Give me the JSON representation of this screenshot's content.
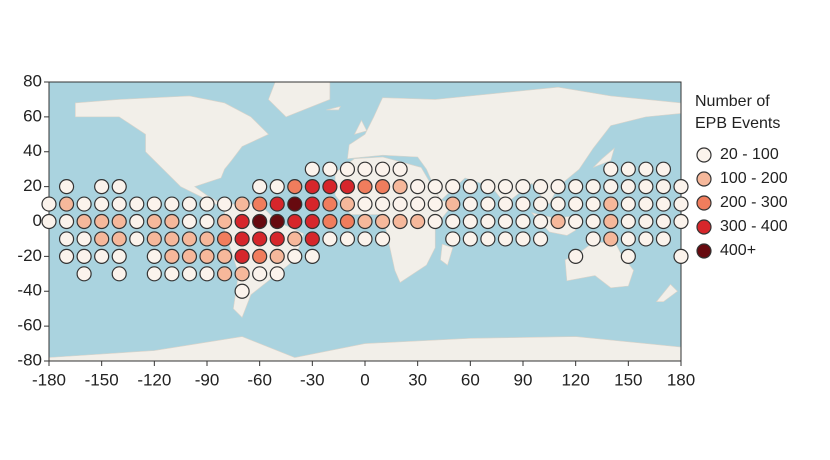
{
  "chart_data": {
    "type": "scatter-map",
    "legend_title": [
      "Number of",
      "EPB Events"
    ],
    "bins": [
      {
        "label": "20 - 100",
        "color": "#fbf3ec"
      },
      {
        "label": "100 - 200",
        "color": "#f6b89b"
      },
      {
        "label": "200 - 300",
        "color": "#f07d5d"
      },
      {
        "label": "300 - 400",
        "color": "#d6262b"
      },
      {
        "label": "400+",
        "color": "#670a0f"
      }
    ],
    "xlim": [
      -180,
      180
    ],
    "ylim": [
      -80,
      80
    ],
    "xticks": [
      -180,
      -150,
      -120,
      -90,
      -60,
      -30,
      0,
      30,
      60,
      90,
      120,
      150,
      180
    ],
    "yticks": [
      -80,
      -60,
      -40,
      -20,
      0,
      20,
      40,
      60,
      80
    ],
    "points": [
      [
        -30,
        30,
        0
      ],
      [
        -20,
        30,
        0
      ],
      [
        -10,
        30,
        0
      ],
      [
        0,
        30,
        0
      ],
      [
        10,
        30,
        0
      ],
      [
        20,
        30,
        0
      ],
      [
        140,
        30,
        0
      ],
      [
        150,
        30,
        0
      ],
      [
        160,
        30,
        0
      ],
      [
        170,
        30,
        0
      ],
      [
        -170,
        20,
        0
      ],
      [
        -150,
        20,
        0
      ],
      [
        -140,
        20,
        0
      ],
      [
        -60,
        20,
        0
      ],
      [
        -50,
        20,
        0
      ],
      [
        -40,
        20,
        2
      ],
      [
        -30,
        20,
        3
      ],
      [
        -20,
        20,
        3
      ],
      [
        -10,
        20,
        3
      ],
      [
        0,
        20,
        2
      ],
      [
        10,
        20,
        2
      ],
      [
        20,
        20,
        1
      ],
      [
        30,
        20,
        0
      ],
      [
        40,
        20,
        0
      ],
      [
        50,
        20,
        0
      ],
      [
        60,
        20,
        0
      ],
      [
        70,
        20,
        0
      ],
      [
        80,
        20,
        0
      ],
      [
        90,
        20,
        0
      ],
      [
        100,
        20,
        0
      ],
      [
        110,
        20,
        0
      ],
      [
        120,
        20,
        0
      ],
      [
        130,
        20,
        0
      ],
      [
        140,
        20,
        0
      ],
      [
        150,
        20,
        0
      ],
      [
        160,
        20,
        0
      ],
      [
        170,
        20,
        0
      ],
      [
        180,
        20,
        0
      ],
      [
        -180,
        10,
        0
      ],
      [
        -170,
        10,
        1
      ],
      [
        -160,
        10,
        0
      ],
      [
        -150,
        10,
        0
      ],
      [
        -140,
        10,
        0
      ],
      [
        -130,
        10,
        0
      ],
      [
        -120,
        10,
        0
      ],
      [
        -110,
        10,
        0
      ],
      [
        -100,
        10,
        0
      ],
      [
        -90,
        10,
        0
      ],
      [
        -80,
        10,
        0
      ],
      [
        -70,
        10,
        1
      ],
      [
        -60,
        10,
        2
      ],
      [
        -50,
        10,
        3
      ],
      [
        -40,
        10,
        4
      ],
      [
        -30,
        10,
        3
      ],
      [
        -20,
        10,
        2
      ],
      [
        -10,
        10,
        1
      ],
      [
        0,
        10,
        0
      ],
      [
        10,
        10,
        0
      ],
      [
        20,
        10,
        0
      ],
      [
        30,
        10,
        0
      ],
      [
        40,
        10,
        0
      ],
      [
        50,
        10,
        1
      ],
      [
        60,
        10,
        0
      ],
      [
        70,
        10,
        0
      ],
      [
        80,
        10,
        0
      ],
      [
        90,
        10,
        0
      ],
      [
        100,
        10,
        0
      ],
      [
        110,
        10,
        0
      ],
      [
        120,
        10,
        0
      ],
      [
        130,
        10,
        0
      ],
      [
        140,
        10,
        1
      ],
      [
        150,
        10,
        0
      ],
      [
        160,
        10,
        0
      ],
      [
        170,
        10,
        0
      ],
      [
        180,
        10,
        0
      ],
      [
        -180,
        0,
        0
      ],
      [
        -170,
        0,
        0
      ],
      [
        -160,
        0,
        1
      ],
      [
        -150,
        0,
        1
      ],
      [
        -140,
        0,
        1
      ],
      [
        -130,
        0,
        0
      ],
      [
        -120,
        0,
        1
      ],
      [
        -110,
        0,
        1
      ],
      [
        -100,
        0,
        0
      ],
      [
        -90,
        0,
        0
      ],
      [
        -80,
        0,
        1
      ],
      [
        -70,
        0,
        3
      ],
      [
        -60,
        0,
        4
      ],
      [
        -50,
        0,
        4
      ],
      [
        -40,
        0,
        3
      ],
      [
        -30,
        0,
        3
      ],
      [
        -20,
        0,
        2
      ],
      [
        -10,
        0,
        2
      ],
      [
        0,
        0,
        1
      ],
      [
        10,
        0,
        1
      ],
      [
        20,
        0,
        1
      ],
      [
        30,
        0,
        1
      ],
      [
        40,
        0,
        0
      ],
      [
        50,
        0,
        0
      ],
      [
        60,
        0,
        0
      ],
      [
        70,
        0,
        0
      ],
      [
        80,
        0,
        0
      ],
      [
        90,
        0,
        0
      ],
      [
        100,
        0,
        0
      ],
      [
        110,
        0,
        1
      ],
      [
        120,
        0,
        0
      ],
      [
        130,
        0,
        0
      ],
      [
        140,
        0,
        1
      ],
      [
        150,
        0,
        0
      ],
      [
        160,
        0,
        0
      ],
      [
        170,
        0,
        0
      ],
      [
        180,
        0,
        0
      ],
      [
        -170,
        -10,
        0
      ],
      [
        -160,
        -10,
        0
      ],
      [
        -150,
        -10,
        1
      ],
      [
        -140,
        -10,
        1
      ],
      [
        -130,
        -10,
        0
      ],
      [
        -120,
        -10,
        1
      ],
      [
        -110,
        -10,
        1
      ],
      [
        -100,
        -10,
        1
      ],
      [
        -90,
        -10,
        1
      ],
      [
        -80,
        -10,
        2
      ],
      [
        -70,
        -10,
        3
      ],
      [
        -60,
        -10,
        3
      ],
      [
        -50,
        -10,
        3
      ],
      [
        -40,
        -10,
        1
      ],
      [
        -30,
        -10,
        3
      ],
      [
        -20,
        -10,
        0
      ],
      [
        -10,
        -10,
        0
      ],
      [
        0,
        -10,
        0
      ],
      [
        10,
        -10,
        0
      ],
      [
        50,
        -10,
        0
      ],
      [
        60,
        -10,
        0
      ],
      [
        70,
        -10,
        0
      ],
      [
        80,
        -10,
        0
      ],
      [
        90,
        -10,
        0
      ],
      [
        100,
        -10,
        0
      ],
      [
        130,
        -10,
        0
      ],
      [
        140,
        -10,
        1
      ],
      [
        150,
        -10,
        0
      ],
      [
        160,
        -10,
        0
      ],
      [
        170,
        -10,
        0
      ],
      [
        -170,
        -20,
        0
      ],
      [
        -160,
        -20,
        0
      ],
      [
        -150,
        -20,
        0
      ],
      [
        -140,
        -20,
        0
      ],
      [
        -120,
        -20,
        0
      ],
      [
        -110,
        -20,
        1
      ],
      [
        -100,
        -20,
        1
      ],
      [
        -90,
        -20,
        1
      ],
      [
        -80,
        -20,
        1
      ],
      [
        -70,
        -20,
        3
      ],
      [
        -60,
        -20,
        2
      ],
      [
        -50,
        -20,
        1
      ],
      [
        -40,
        -20,
        0
      ],
      [
        -30,
        -20,
        0
      ],
      [
        120,
        -20,
        0
      ],
      [
        150,
        -20,
        0
      ],
      [
        180,
        -20,
        0
      ],
      [
        -160,
        -30,
        0
      ],
      [
        -140,
        -30,
        0
      ],
      [
        -120,
        -30,
        0
      ],
      [
        -110,
        -30,
        0
      ],
      [
        -100,
        -30,
        0
      ],
      [
        -90,
        -30,
        0
      ],
      [
        -80,
        -30,
        1
      ],
      [
        -70,
        -30,
        1
      ],
      [
        -60,
        -30,
        0
      ],
      [
        -50,
        -30,
        0
      ],
      [
        -70,
        -40,
        0
      ]
    ]
  }
}
